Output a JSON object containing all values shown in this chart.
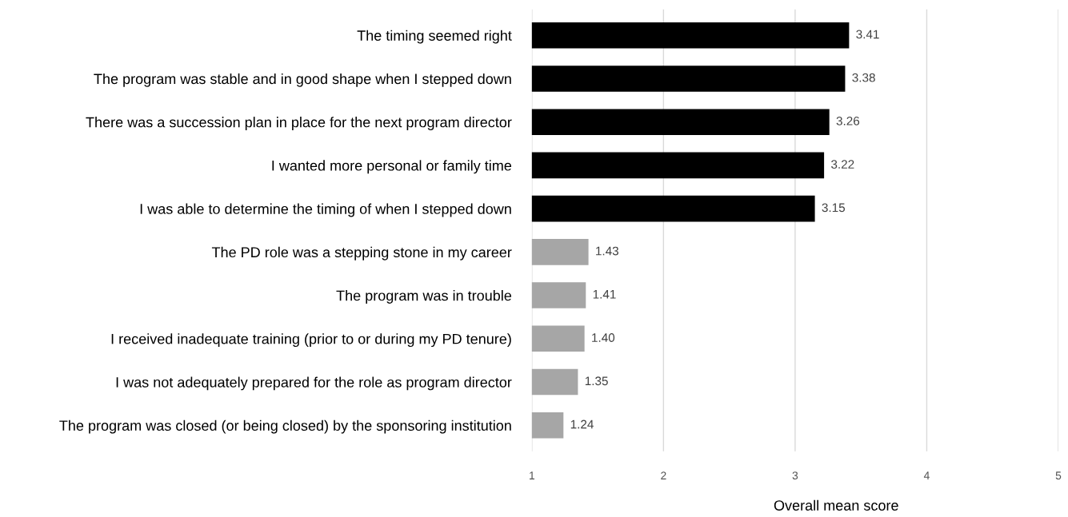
{
  "chart_data": {
    "type": "bar",
    "orientation": "horizontal",
    "xlabel": "Overall mean score",
    "categories": [
      "The timing seemed right",
      "The program was stable and in good shape when I stepped down",
      "There was a succession plan in place for the next program director",
      "I wanted more personal or family time",
      "I was able to determine the timing of when I stepped down",
      "The PD role was a stepping stone in my career",
      "The program was in trouble",
      "I received inadequate training (prior to or during my PD tenure)",
      "I was not adequately prepared for the role as program director",
      "The program was closed (or being closed) by the sponsoring institution"
    ],
    "values": [
      3.41,
      3.38,
      3.26,
      3.22,
      3.15,
      1.43,
      1.41,
      1.4,
      1.35,
      1.24
    ],
    "value_labels": [
      "3.41",
      "3.38",
      "3.26",
      "3.22",
      "3.15",
      "1.43",
      "1.41",
      "1.40",
      "1.35",
      "1.24"
    ],
    "colors": [
      "#000000",
      "#000000",
      "#000000",
      "#000000",
      "#000000",
      "#a6a6a6",
      "#a6a6a6",
      "#a6a6a6",
      "#a6a6a6",
      "#a6a6a6"
    ],
    "xlim": [
      1,
      5
    ],
    "xticks": [
      1,
      2,
      3,
      4,
      5
    ],
    "grid": "x",
    "legend": false
  }
}
